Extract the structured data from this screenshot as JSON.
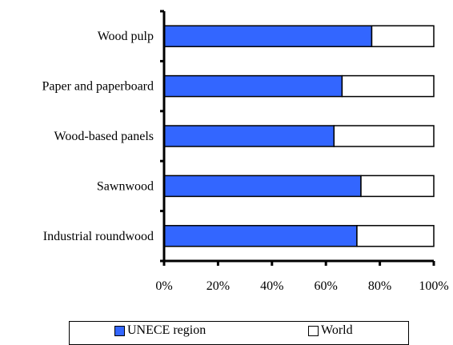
{
  "chart_data": {
    "type": "bar",
    "orientation": "horizontal",
    "stacked": true,
    "categories": [
      "Wood pulp",
      "Paper and paperboard",
      "Wood-based panels",
      "Sawnwood",
      "Industrial roundwood"
    ],
    "series": [
      {
        "name": "UNECE region",
        "values": [
          77,
          66,
          63,
          73,
          71.5
        ],
        "color": "#3366ff"
      },
      {
        "name": "World",
        "values": [
          23,
          34,
          37,
          27,
          28.5
        ],
        "color": "#ffffff"
      }
    ],
    "x_ticks": [
      "0%",
      "20%",
      "40%",
      "60%",
      "80%",
      "100%"
    ],
    "xlim": [
      0,
      100
    ],
    "grid": false,
    "legend_position": "bottom"
  }
}
